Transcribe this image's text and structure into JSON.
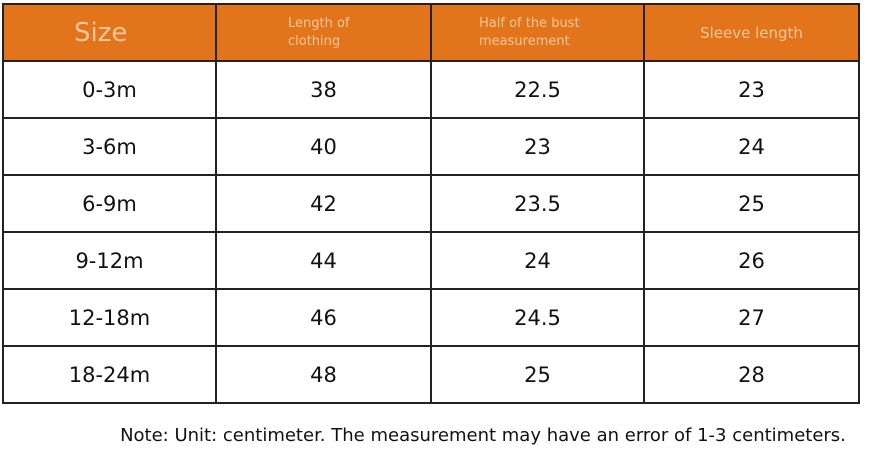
{
  "table": {
    "header": [
      "Size",
      "Length of clothing",
      "Half of the bust measurement",
      "Sleeve length"
    ],
    "rows": [
      [
        "0-3m",
        38,
        22.5,
        23
      ],
      [
        "3-6m",
        40,
        23,
        24
      ],
      [
        "6-9m",
        42,
        23.5,
        25
      ],
      [
        "9-12m",
        44,
        24,
        26
      ],
      [
        "12-18m",
        46,
        24.5,
        27
      ],
      [
        "18-24m",
        48,
        25,
        28
      ]
    ]
  },
  "note": "Note: Unit: centimeter. The measurement may have an error of 1-3 centimeters."
}
